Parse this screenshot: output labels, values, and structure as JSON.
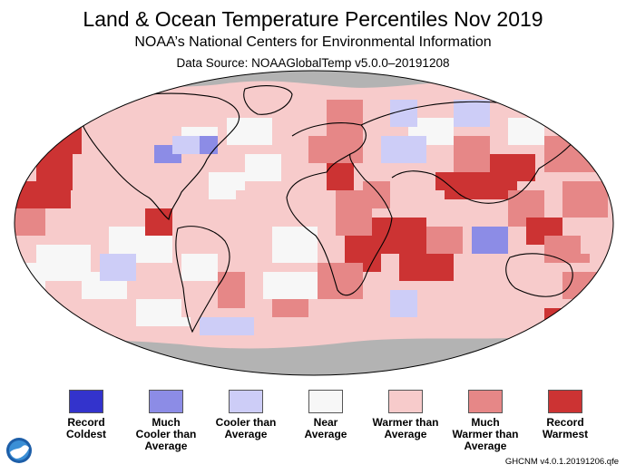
{
  "header": {
    "title": "Land & Ocean Temperature Percentiles Nov 2019",
    "subtitle": "NOAA’s National Centers for Environmental Information",
    "source": "Data Source: NOAAGlobalTemp v5.0.0–20191208"
  },
  "legend": [
    {
      "label": "Record\nColdest",
      "color": "#3333cc"
    },
    {
      "label": "Much\nCooler than\nAverage",
      "color": "#8c8ce6"
    },
    {
      "label": "Cooler than\nAverage",
      "color": "#cdcdf7"
    },
    {
      "label": "Near\nAverage",
      "color": "#f7f7f7"
    },
    {
      "label": "Warmer than\nAverage",
      "color": "#f7cbcb"
    },
    {
      "label": "Much\nWarmer than\nAverage",
      "color": "#e68787"
    },
    {
      "label": "Record\nWarmest",
      "color": "#cc3333"
    }
  ],
  "colors": {
    "no_data": "#b3b3b3",
    "coastline": "#000000"
  },
  "logo": {
    "text": "NOAA",
    "icon": "noaa-logo-icon"
  },
  "footer": "GHCNM v4.0.1.20191206.qfe"
}
